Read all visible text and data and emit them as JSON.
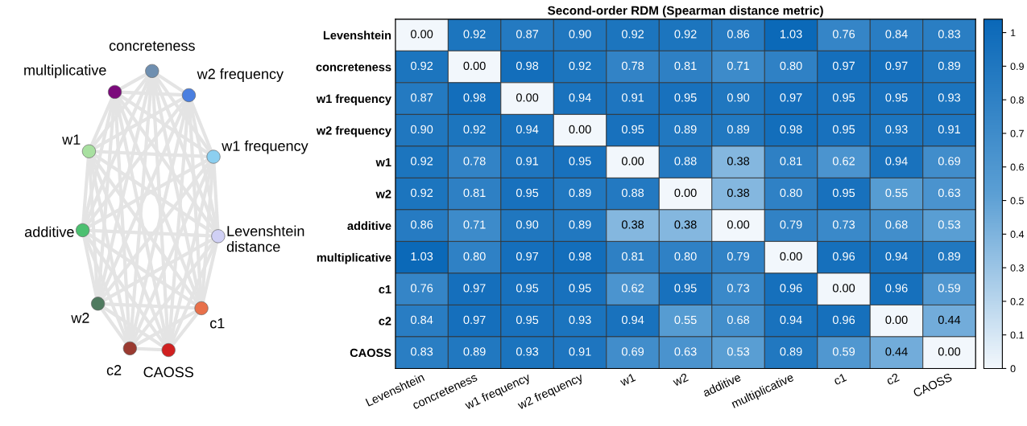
{
  "chart_data": [
    {
      "type": "other",
      "categories": [
        "multiplicative",
        "concreteness",
        "w2 frequency",
        "w1 frequency",
        "Levenshtein\ndistance",
        "c1",
        "CAOSS",
        "c2",
        "w2",
        "additive",
        "w1"
      ],
      "colors": [
        "#7b0a7b",
        "#6f8fb0",
        "#4a7fe0",
        "#8ccff0",
        "#d0d0f5",
        "#e8704a",
        "#d02020",
        "#9a3a30",
        "#4f7a5f",
        "#4cc070",
        "#a8e0a0"
      ]
    },
    {
      "type": "heatmap",
      "title": "Second-order RDM (Spearman distance metric)",
      "categories": [
        "Levenshtein",
        "concreteness",
        "w1 frequency",
        "w2 frequency",
        "w1",
        "w2",
        "additive",
        "multiplicative",
        "c1",
        "c2",
        "CAOSS"
      ],
      "y_categories": [
        "Levenshtein",
        "concreteness",
        "w1 frequency",
        "w2 frequency",
        "w1",
        "w2",
        "additive",
        "multiplicative",
        "c1",
        "c2",
        "CAOSS"
      ],
      "cells": [
        [
          0.0,
          0.92,
          0.87,
          0.9,
          0.92,
          0.92,
          0.86,
          1.03,
          0.76,
          0.84,
          0.83
        ],
        [
          0.92,
          0.0,
          0.98,
          0.92,
          0.78,
          0.81,
          0.71,
          0.8,
          0.97,
          0.97,
          0.89
        ],
        [
          0.87,
          0.98,
          0.0,
          0.94,
          0.91,
          0.95,
          0.9,
          0.97,
          0.95,
          0.95,
          0.93
        ],
        [
          0.9,
          0.92,
          0.94,
          0.0,
          0.95,
          0.89,
          0.89,
          0.98,
          0.95,
          0.93,
          0.91
        ],
        [
          0.92,
          0.78,
          0.91,
          0.95,
          0.0,
          0.88,
          0.38,
          0.81,
          0.62,
          0.94,
          0.69
        ],
        [
          0.92,
          0.81,
          0.95,
          0.89,
          0.88,
          0.0,
          0.38,
          0.8,
          0.95,
          0.55,
          0.63
        ],
        [
          0.86,
          0.71,
          0.9,
          0.89,
          0.38,
          0.38,
          0.0,
          0.79,
          0.73,
          0.68,
          0.53
        ],
        [
          1.03,
          0.8,
          0.97,
          0.98,
          0.81,
          0.8,
          0.79,
          0.0,
          0.96,
          0.94,
          0.89
        ],
        [
          0.76,
          0.97,
          0.95,
          0.95,
          0.62,
          0.95,
          0.73,
          0.96,
          0.0,
          0.96,
          0.59
        ],
        [
          0.84,
          0.97,
          0.95,
          0.93,
          0.94,
          0.55,
          0.68,
          0.94,
          0.96,
          0.0,
          0.44
        ],
        [
          0.83,
          0.89,
          0.93,
          0.91,
          0.69,
          0.63,
          0.53,
          0.89,
          0.59,
          0.44,
          0.0
        ]
      ],
      "cell_labels": [
        [
          "0.00",
          "0.92",
          "0.87",
          "0.90",
          "0.92",
          "0.92",
          "0.86",
          "1.03",
          "0.76",
          "0.84",
          "0.83"
        ],
        [
          "0.92",
          "0.00",
          "0.98",
          "0.92",
          "0.78",
          "0.81",
          "0.71",
          "0.80",
          "0.97",
          "0.97",
          "0.89"
        ],
        [
          "0.87",
          "0.98",
          "0.00",
          "0.94",
          "0.91",
          "0.95",
          "0.90",
          "0.97",
          "0.95",
          "0.95",
          "0.93"
        ],
        [
          "0.90",
          "0.92",
          "0.94",
          "0.00",
          "0.95",
          "0.89",
          "0.89",
          "0.98",
          "0.95",
          "0.93",
          "0.91"
        ],
        [
          "0.92",
          "0.78",
          "0.91",
          "0.95",
          "0.00",
          "0.88",
          "0.38",
          "0.81",
          "0.62",
          "0.94",
          "0.69"
        ],
        [
          "0.92",
          "0.81",
          "0.95",
          "0.89",
          "0.88",
          "0.00",
          "0.38",
          "0.80",
          "0.95",
          "0.55",
          "0.63"
        ],
        [
          "0.86",
          "0.71",
          "0.90",
          "0.89",
          "0.38",
          "0.38",
          "0.00",
          "0.79",
          "0.73",
          "0.68",
          "0.53"
        ],
        [
          "1.03",
          "0.80",
          "0.97",
          "0.98",
          "0.81",
          "0.80",
          "0.79",
          "0.00",
          "0.96",
          "0.94",
          "0.89"
        ],
        [
          "0.76",
          "0.97",
          "0.95",
          "0.95",
          "0.62",
          "0.95",
          "0.73",
          "0.96",
          "0.00",
          "0.96",
          "0.59"
        ],
        [
          "0.84",
          "0.97",
          "0.95",
          "0.93",
          "0.94",
          "0.55",
          "0.68",
          "0.94",
          "0.96",
          "0.00",
          "0.44"
        ],
        [
          "0.83",
          "0.89",
          "0.93",
          "0.91",
          "0.69",
          "0.63",
          "0.53",
          "0.89",
          "0.59",
          "0.44",
          "0.00"
        ]
      ],
      "clim": [
        0,
        1.04
      ],
      "cticks": [
        0,
        0.1,
        0.2,
        0.3,
        0.4,
        0.5,
        0.6,
        0.7,
        0.8,
        0.9,
        1
      ]
    }
  ]
}
